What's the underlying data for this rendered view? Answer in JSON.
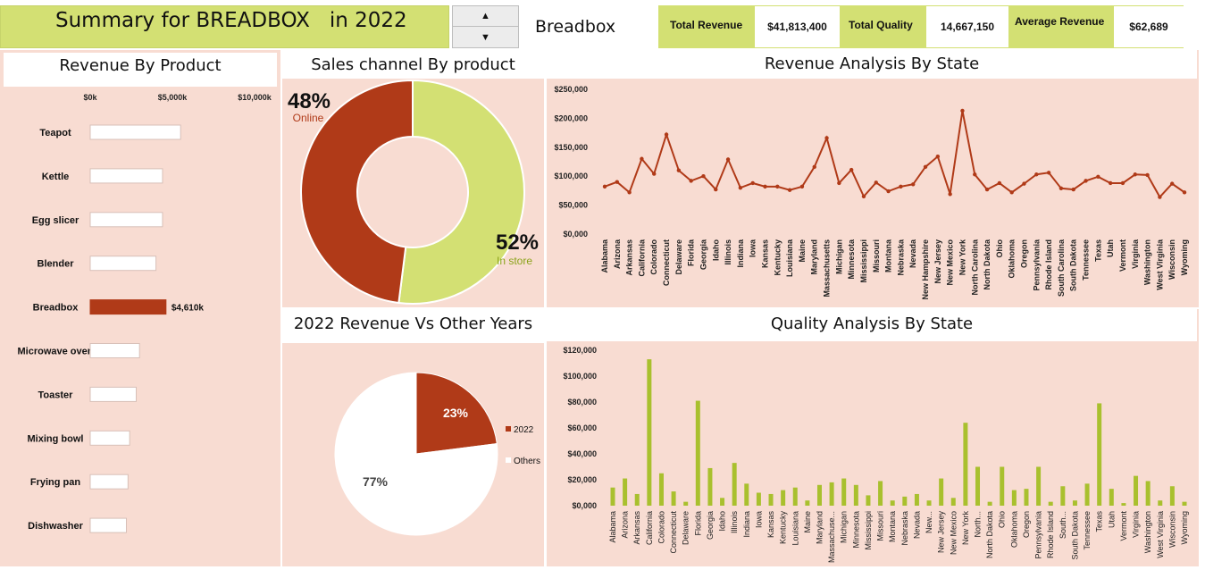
{
  "header": {
    "title": "Summary for BREADBOX   in 2022",
    "selected_product": "Breadbox",
    "total_revenue_label": "Total Revenue",
    "total_revenue_value": "$41,813,400",
    "total_quality_label": "Total Quality",
    "total_quality_value": "14,667,150",
    "average_revenue_label": "Average Revenue",
    "average_revenue_value": "$62,689"
  },
  "colors": {
    "green": "#d3e073",
    "brown": "#b03a18",
    "panel": "#f8dcd2",
    "donut_green_label": "#8ca31a"
  },
  "icons": {
    "spin_up": "up-arrow-icon",
    "spin_down": "down-arrow-icon"
  },
  "panels": {
    "revenue_by_product": "Revenue By Product",
    "sales_channel": "Sales channel By product",
    "revenue_vs_years": "2022 Revenue Vs Other Years",
    "revenue_by_state": "Revenue Analysis By State",
    "quality_by_state": "Quality Analysis By State"
  },
  "chart_data": [
    {
      "type": "bar",
      "orientation": "horizontal",
      "title": "Revenue By Product",
      "categories": [
        "Teapot",
        "Kettle",
        "Egg slicer",
        "Blender",
        "Breadbox",
        "Microwave oven",
        "Toaster",
        "Mixing bowl",
        "Frying pan",
        "Dishwasher"
      ],
      "values": [
        5500,
        4400,
        4400,
        4000,
        4610,
        3000,
        2800,
        2400,
        2300,
        2200
      ],
      "x_ticks": [
        "$0k",
        "$5,000k",
        "$10,000k"
      ],
      "xlim": [
        0,
        10000
      ],
      "highlight": "Breadbox",
      "data_label": "$4,610k"
    },
    {
      "type": "pie",
      "subtype": "donut",
      "title": "Sales channel By product",
      "labels": [
        "Online",
        "In store"
      ],
      "values": [
        48,
        52
      ],
      "value_labels": [
        "48%",
        "52%"
      ]
    },
    {
      "type": "pie",
      "title": "2022 Revenue Vs Other Years",
      "labels": [
        "2022",
        "Others"
      ],
      "values": [
        23,
        77
      ],
      "value_labels": [
        "23%",
        "77%"
      ]
    },
    {
      "type": "line",
      "title": "Revenue Analysis By State",
      "categories": [
        "Alabama",
        "Arizona",
        "Arkansas",
        "California",
        "Colorado",
        "Connecticut",
        "Delaware",
        "Florida",
        "Georgia",
        "Idaho",
        "Illinois",
        "Indiana",
        "Iowa",
        "Kansas",
        "Kentucky",
        "Louisiana",
        "Maine",
        "Maryland",
        "Massachusetts",
        "Michigan",
        "Minnesota",
        "Mississippi",
        "Missouri",
        "Montana",
        "Nebraska",
        "Nevada",
        "New Hampshire",
        "New Jersey",
        "New Mexico",
        "New York",
        "North Carolina",
        "North Dakota",
        "Ohio",
        "Oklahoma",
        "Oregon",
        "Pennsylvania",
        "Rhode Island",
        "South Carolina",
        "South Dakota",
        "Tennessee",
        "Texas",
        "Utah",
        "Vermont",
        "Virginia",
        "Washington",
        "West Virginia",
        "Wisconsin",
        "Wyoming"
      ],
      "values": [
        82000,
        90000,
        72000,
        130000,
        104000,
        172000,
        110000,
        92000,
        100000,
        77000,
        129000,
        80000,
        88000,
        82000,
        82000,
        76000,
        82000,
        116000,
        166000,
        88000,
        111000,
        65000,
        89000,
        74000,
        82000,
        86000,
        116000,
        134000,
        69000,
        213000,
        103000,
        77000,
        88000,
        72000,
        87000,
        103000,
        106000,
        79000,
        77000,
        92000,
        99000,
        88000,
        88000,
        103000,
        102000,
        64000,
        87000,
        72000
      ],
      "y_ticks": [
        "$0,000",
        "$50,000",
        "$100,000",
        "$150,000",
        "$200,000",
        "$250,000"
      ],
      "ylim": [
        0,
        250000
      ]
    },
    {
      "type": "bar",
      "title": "Quality Analysis By State",
      "categories": [
        "Alabama",
        "Arizona",
        "Arkansas",
        "California",
        "Colorado",
        "Connecticut",
        "Delaware",
        "Florida",
        "Georgia",
        "Idaho",
        "Illinois",
        "Indiana",
        "Iowa",
        "Kansas",
        "Kentucky",
        "Louisiana",
        "Maine",
        "Maryland",
        "Massachuse...",
        "Michigan",
        "Minnesota",
        "Mississippi",
        "Missouri",
        "Montana",
        "Nebraska",
        "Nevada",
        "New...",
        "New Jersey",
        "New Mexico",
        "New York",
        "North...",
        "North Dakota",
        "Ohio",
        "Oklahoma",
        "Oregon",
        "Pennsylvania",
        "Rhode Island",
        "South...",
        "South Dakota",
        "Tennessee",
        "Texas",
        "Utah",
        "Vermont",
        "Virginia",
        "Washington",
        "West Virginia",
        "Wisconsin",
        "Wyoming"
      ],
      "values": [
        14000,
        21000,
        9000,
        113000,
        25000,
        11000,
        3000,
        81000,
        29000,
        6000,
        33000,
        17000,
        10000,
        9000,
        12000,
        14000,
        4000,
        16000,
        18000,
        21000,
        16000,
        8000,
        19000,
        4000,
        7000,
        9000,
        4000,
        21000,
        6000,
        64000,
        30000,
        3000,
        30000,
        12000,
        13000,
        30000,
        3000,
        15000,
        4000,
        17000,
        79000,
        13000,
        2000,
        23000,
        19000,
        4000,
        15000,
        3000
      ],
      "y_ticks": [
        "$0,000",
        "$20,000",
        "$40,000",
        "$60,000",
        "$80,000",
        "$100,000",
        "$120,000"
      ],
      "ylim": [
        0,
        120000
      ]
    }
  ]
}
